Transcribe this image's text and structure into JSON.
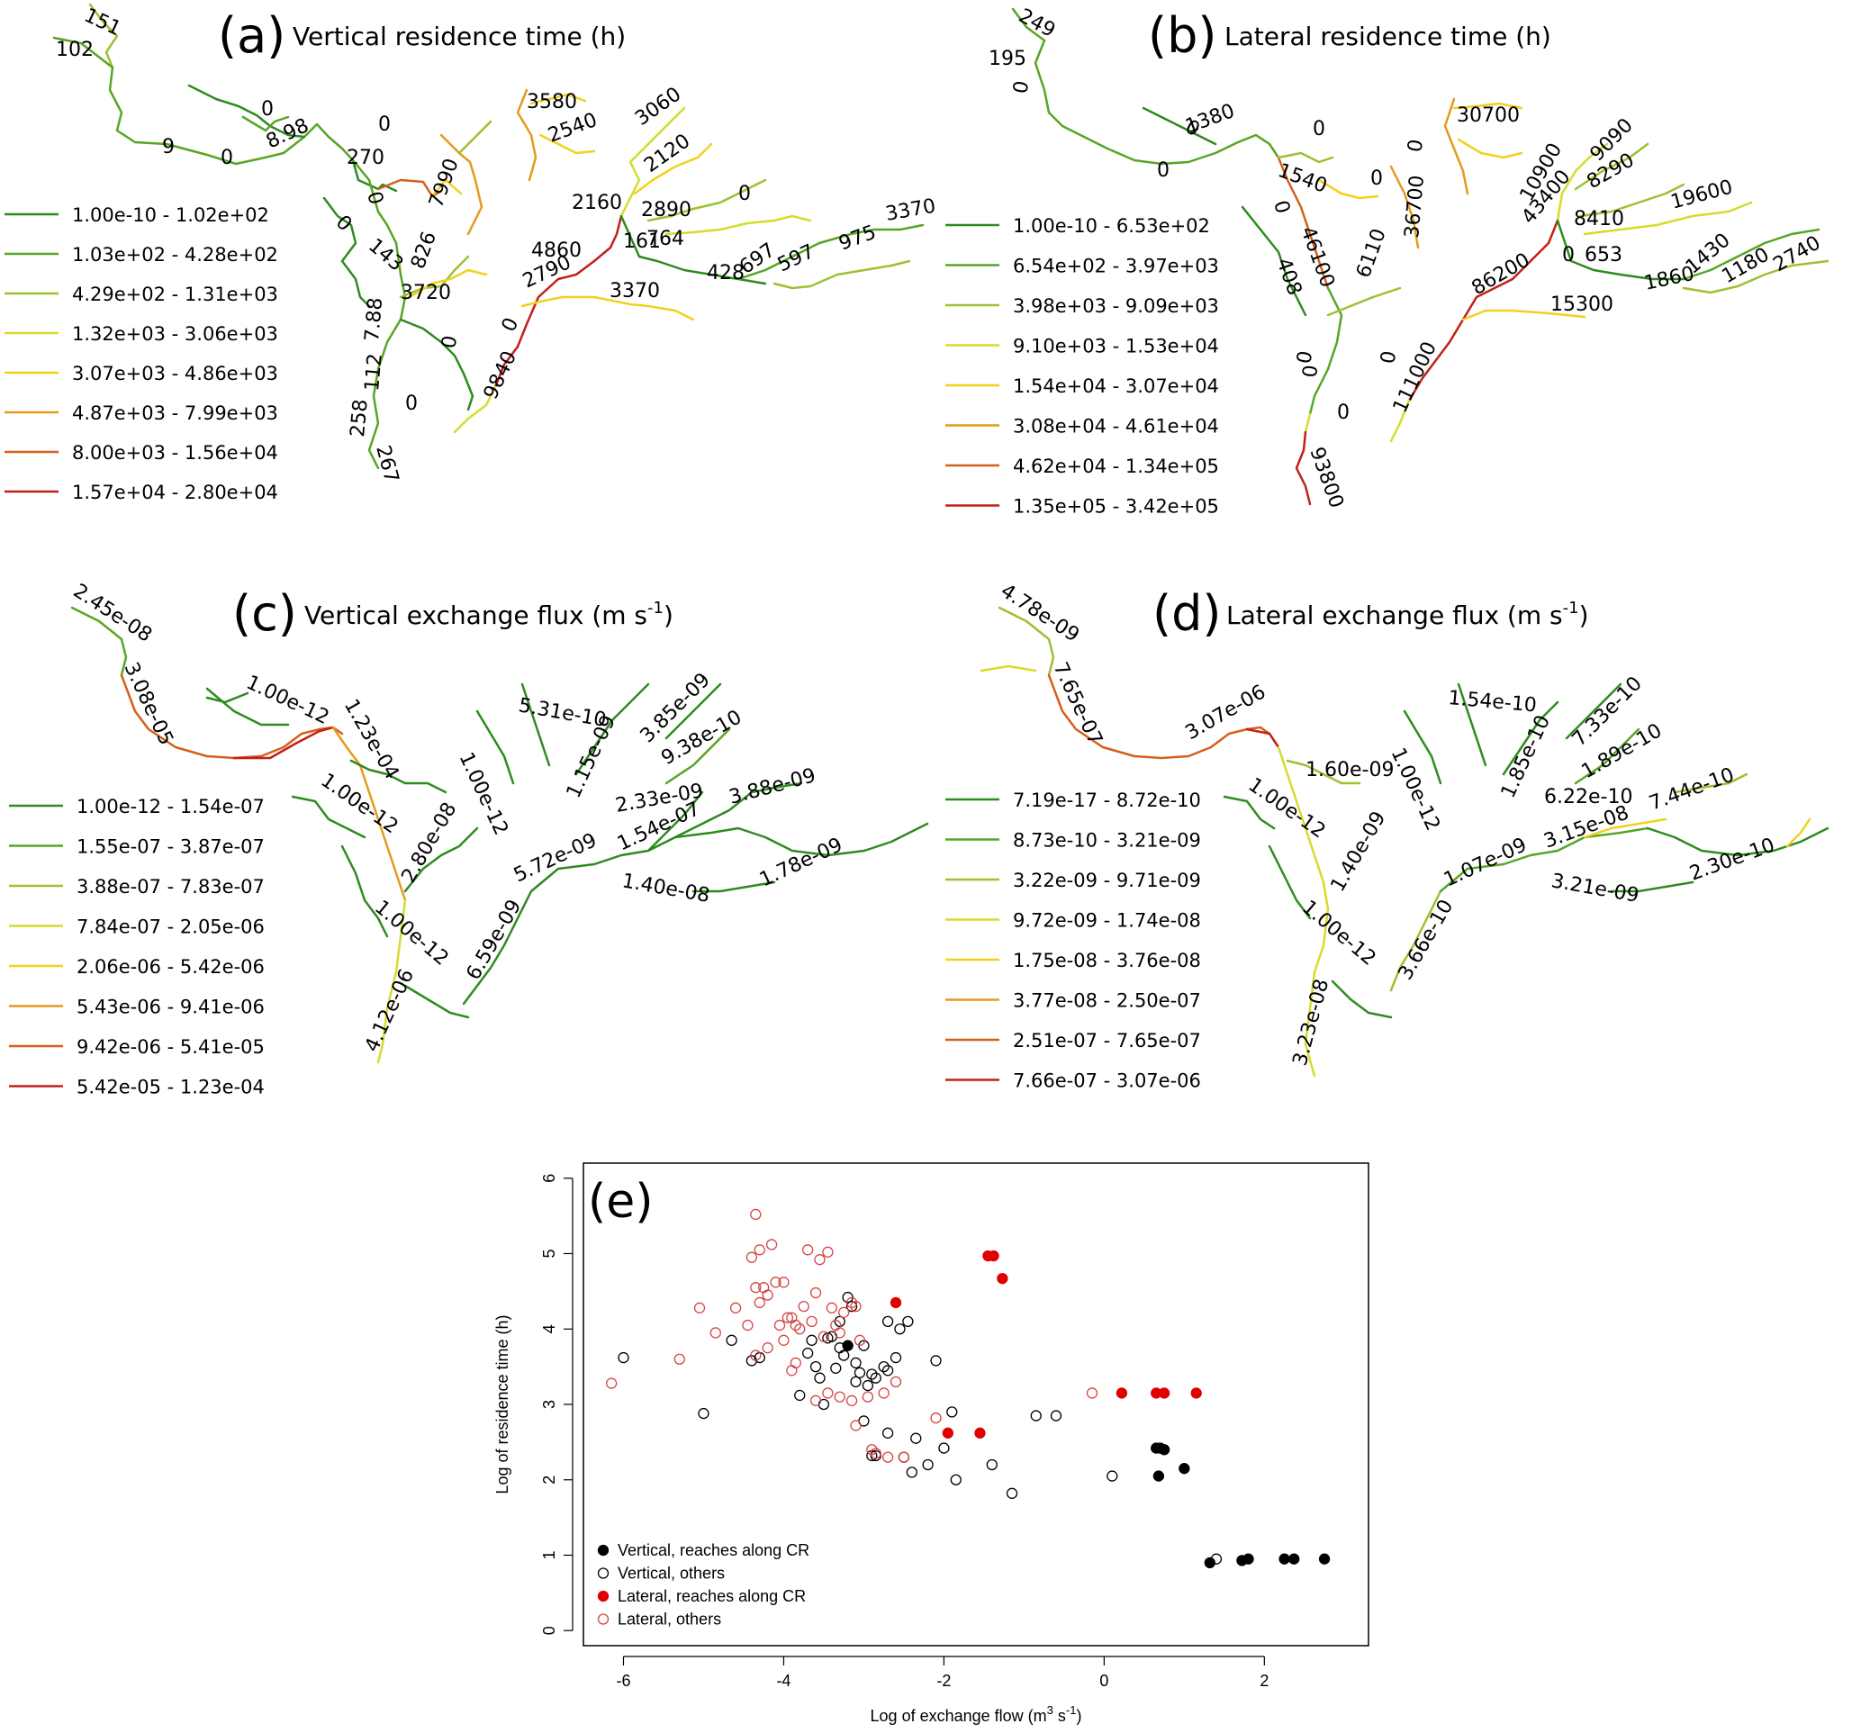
{
  "maps": [
    {
      "id": "a",
      "panel_label": "(a)",
      "title": "Vertical residence time (h)",
      "legend": [
        {
          "range": "1.00e-10 - 1.02e+02",
          "color": "#2e8b1f"
        },
        {
          "range": "1.03e+02 - 4.28e+02",
          "color": "#58a524"
        },
        {
          "range": "4.29e+02 - 1.31e+03",
          "color": "#9bc230"
        },
        {
          "range": "1.32e+03 - 3.06e+03",
          "color": "#d6dc2a"
        },
        {
          "range": "3.07e+03 - 4.86e+03",
          "color": "#f0d21e"
        },
        {
          "range": "4.87e+03 - 7.99e+03",
          "color": "#e69a1c"
        },
        {
          "range": "8.00e+03 - 1.56e+04",
          "color": "#d4601a"
        },
        {
          "range": "1.57e+04 - 2.80e+04",
          "color": "#c21f17"
        }
      ],
      "labels": [
        "151",
        "102",
        "9",
        "0",
        "8.98",
        "0",
        "270",
        "0",
        "7990",
        "0",
        "0",
        "143",
        "826",
        "3720",
        "7.88",
        "112",
        "258",
        "267",
        "0",
        "0",
        "9840",
        "0",
        "2790",
        "4860",
        "3580",
        "2540",
        "3060",
        "2120",
        "2160",
        "2890",
        "0",
        "161",
        "764",
        "428",
        "697",
        "597",
        "975",
        "3370"
      ]
    },
    {
      "id": "b",
      "panel_label": "(b)",
      "title": "Lateral residence time (h)",
      "legend": [
        {
          "range": "1.00e-10 - 6.53e+02",
          "color": "#2e8b1f"
        },
        {
          "range": "6.54e+02 - 3.97e+03",
          "color": "#58a524"
        },
        {
          "range": "3.98e+03 - 9.09e+03",
          "color": "#9bc230"
        },
        {
          "range": "9.10e+03 - 1.53e+04",
          "color": "#d6dc2a"
        },
        {
          "range": "1.54e+04 - 3.07e+04",
          "color": "#f0d21e"
        },
        {
          "range": "3.08e+04 - 4.61e+04",
          "color": "#e69a1c"
        },
        {
          "range": "4.62e+04 - 1.34e+05",
          "color": "#d4601a"
        },
        {
          "range": "1.35e+05 - 3.42e+05",
          "color": "#c21f17"
        }
      ],
      "labels": [
        "249",
        "195",
        "0",
        "0",
        "1380",
        "0",
        "1540",
        "0",
        "0",
        "0",
        "46100",
        "6110",
        "36700",
        "0",
        "408",
        "0",
        "0",
        "111000",
        "93800",
        "30700",
        "10900",
        "9090",
        "8290",
        "43400",
        "8410",
        "19600",
        "0",
        "653",
        "86200",
        "1430",
        "1860",
        "1180",
        "2740",
        "15300"
      ]
    },
    {
      "id": "c",
      "panel_label": "(c)",
      "title": "Vertical exchange flux (m s",
      "title_sup": "-1",
      "title_end": ")",
      "legend": [
        {
          "range": "1.00e-12 - 1.54e-07",
          "color": "#2e8b1f"
        },
        {
          "range": "1.55e-07 - 3.87e-07",
          "color": "#58a524"
        },
        {
          "range": "3.88e-07 - 7.83e-07",
          "color": "#9bc230"
        },
        {
          "range": "7.84e-07 - 2.05e-06",
          "color": "#d6dc2a"
        },
        {
          "range": "2.06e-06 - 5.42e-06",
          "color": "#f0d21e"
        },
        {
          "range": "5.43e-06 - 9.41e-06",
          "color": "#e69a1c"
        },
        {
          "range": "9.42e-06 - 5.41e-05",
          "color": "#d4601a"
        },
        {
          "range": "5.42e-05 - 1.23e-04",
          "color": "#c21f17"
        }
      ],
      "labels": [
        "2.45e-08",
        "3.08e-05",
        "1.00e-12",
        "1.23e-04",
        "1.00e-12",
        "2.80e-08",
        "1.00e-12",
        "4.12e-06",
        "1.00e-12",
        "5.31e-10",
        "1.15e-09",
        "3.85e-09",
        "9.38e-10",
        "2.33e-09",
        "3.88e-09",
        "1.54e-07",
        "5.72e-09",
        "1.40e-08",
        "1.78e-09",
        "6.59e-09"
      ]
    },
    {
      "id": "d",
      "panel_label": "(d)",
      "title": "Lateral exchange flux (m s",
      "title_sup": "-1",
      "title_end": ")",
      "legend": [
        {
          "range": "7.19e-17 - 8.72e-10",
          "color": "#2e8b1f"
        },
        {
          "range": "8.73e-10 - 3.21e-09",
          "color": "#58a524"
        },
        {
          "range": "3.22e-09 - 9.71e-09",
          "color": "#9bc230"
        },
        {
          "range": "9.72e-09 - 1.74e-08",
          "color": "#d6dc2a"
        },
        {
          "range": "1.75e-08 - 3.76e-08",
          "color": "#f0d21e"
        },
        {
          "range": "3.77e-08 - 2.50e-07",
          "color": "#e69a1c"
        },
        {
          "range": "2.51e-07 - 7.65e-07",
          "color": "#d4601a"
        },
        {
          "range": "7.66e-07 - 3.07e-06",
          "color": "#c21f17"
        }
      ],
      "labels": [
        "4.78e-09",
        "7.65e-07",
        "3.07e-06",
        "1.60e-09",
        "1.00e-12",
        "1.40e-09",
        "1.00e-12",
        "3.23e-08",
        "1.54e-10",
        "1.00e-12",
        "1.85e-10",
        "7.33e-10",
        "1.89e-10",
        "6.22e-10",
        "7.44e-10",
        "3.15e-08",
        "1.07e-09",
        "3.21e-09",
        "2.30e-10",
        "3.66e-10"
      ]
    }
  ],
  "chart_data": {
    "type": "scatter",
    "panel_label": "(e)",
    "xlabel": "Log of exchange flow (m",
    "xlabel_sup": "3",
    "xlabel_mid": " s",
    "xlabel_sup2": "-1",
    "xlabel_end": ")",
    "ylabel": "Log of residence time (h)",
    "xlim": [
      -6.5,
      3.3
    ],
    "ylim": [
      -0.2,
      6.2
    ],
    "x_ticks": [
      -6,
      -4,
      -2,
      0,
      2
    ],
    "y_ticks": [
      0,
      1,
      2,
      3,
      4,
      5,
      6
    ],
    "grid": false,
    "legend_position": "bottom-left",
    "series": [
      {
        "name": "Vertical, reaches along CR",
        "marker": "filled",
        "color": "#000000",
        "points": [
          [
            -3.2,
            3.78
          ],
          [
            0.65,
            2.42
          ],
          [
            0.7,
            2.42
          ],
          [
            0.75,
            2.4
          ],
          [
            1.0,
            2.15
          ],
          [
            0.68,
            2.05
          ],
          [
            1.32,
            0.9
          ],
          [
            1.72,
            0.93
          ],
          [
            1.8,
            0.95
          ],
          [
            2.25,
            0.95
          ],
          [
            2.37,
            0.95
          ],
          [
            2.75,
            0.95
          ]
        ]
      },
      {
        "name": "Vertical, others",
        "marker": "open",
        "color": "#000000",
        "points": [
          [
            -6.0,
            3.62
          ],
          [
            -5.0,
            2.88
          ],
          [
            -4.65,
            3.85
          ],
          [
            -4.4,
            3.58
          ],
          [
            -4.3,
            3.62
          ],
          [
            -3.8,
            3.12
          ],
          [
            -3.7,
            3.68
          ],
          [
            -3.6,
            3.5
          ],
          [
            -3.55,
            3.35
          ],
          [
            -3.45,
            3.88
          ],
          [
            -3.4,
            3.9
          ],
          [
            -3.3,
            3.75
          ],
          [
            -3.35,
            3.48
          ],
          [
            -3.2,
            4.42
          ],
          [
            -3.15,
            4.3
          ],
          [
            -3.1,
            3.55
          ],
          [
            -3.0,
            3.78
          ],
          [
            -3.05,
            3.42
          ],
          [
            -2.9,
            3.4
          ],
          [
            -2.85,
            3.35
          ],
          [
            -2.75,
            3.5
          ],
          [
            -2.7,
            3.45
          ],
          [
            -2.6,
            3.62
          ],
          [
            -2.55,
            4.0
          ],
          [
            -2.45,
            4.1
          ],
          [
            -2.7,
            4.1
          ],
          [
            -3.3,
            4.1
          ],
          [
            -3.5,
            3.0
          ],
          [
            -3.0,
            2.78
          ],
          [
            -2.9,
            2.32
          ],
          [
            -2.85,
            2.32
          ],
          [
            -2.7,
            2.62
          ],
          [
            -2.5,
            2.3
          ],
          [
            -2.4,
            2.1
          ],
          [
            -2.35,
            2.55
          ],
          [
            -2.2,
            2.2
          ],
          [
            -2.1,
            3.58
          ],
          [
            -2.0,
            2.42
          ],
          [
            -1.9,
            2.9
          ],
          [
            -1.85,
            2.0
          ],
          [
            -1.4,
            2.2
          ],
          [
            -1.15,
            1.82
          ],
          [
            -0.85,
            2.85
          ],
          [
            -0.6,
            2.85
          ],
          [
            0.1,
            2.05
          ],
          [
            1.4,
            0.95
          ],
          [
            -3.25,
            3.65
          ],
          [
            -3.1,
            3.3
          ],
          [
            -3.65,
            3.85
          ],
          [
            -2.95,
            3.25
          ]
        ]
      },
      {
        "name": "Lateral, reaches along CR",
        "marker": "filled",
        "color": "#e00000",
        "points": [
          [
            -2.6,
            4.35
          ],
          [
            -1.45,
            4.97
          ],
          [
            -1.38,
            4.97
          ],
          [
            -1.27,
            4.67
          ],
          [
            0.22,
            3.15
          ],
          [
            0.65,
            3.15
          ],
          [
            0.75,
            3.15
          ],
          [
            1.15,
            3.15
          ],
          [
            -1.95,
            2.62
          ],
          [
            -1.55,
            2.62
          ]
        ]
      },
      {
        "name": "Lateral, others",
        "marker": "open",
        "color": "#d64545",
        "points": [
          [
            -6.15,
            3.28
          ],
          [
            -5.3,
            3.6
          ],
          [
            -5.05,
            4.28
          ],
          [
            -4.85,
            3.95
          ],
          [
            -4.6,
            4.28
          ],
          [
            -4.45,
            4.05
          ],
          [
            -4.4,
            4.95
          ],
          [
            -4.35,
            5.52
          ],
          [
            -4.3,
            5.05
          ],
          [
            -4.35,
            4.55
          ],
          [
            -4.3,
            4.35
          ],
          [
            -4.25,
            4.55
          ],
          [
            -4.2,
            4.45
          ],
          [
            -4.15,
            5.12
          ],
          [
            -4.1,
            4.62
          ],
          [
            -4.0,
            4.62
          ],
          [
            -4.05,
            4.05
          ],
          [
            -3.95,
            4.15
          ],
          [
            -3.9,
            4.15
          ],
          [
            -3.85,
            4.05
          ],
          [
            -3.8,
            4.0
          ],
          [
            -3.75,
            4.3
          ],
          [
            -3.7,
            5.05
          ],
          [
            -3.65,
            4.1
          ],
          [
            -3.6,
            4.48
          ],
          [
            -3.55,
            4.92
          ],
          [
            -3.45,
            5.02
          ],
          [
            -3.4,
            4.28
          ],
          [
            -3.35,
            4.05
          ],
          [
            -3.3,
            3.95
          ],
          [
            -3.25,
            4.22
          ],
          [
            -3.15,
            4.35
          ],
          [
            -3.1,
            4.3
          ],
          [
            -3.05,
            3.85
          ],
          [
            -3.9,
            3.45
          ],
          [
            -3.85,
            3.55
          ],
          [
            -4.35,
            3.65
          ],
          [
            -4.2,
            3.75
          ],
          [
            -3.6,
            3.05
          ],
          [
            -3.3,
            3.1
          ],
          [
            -3.15,
            3.05
          ],
          [
            -3.45,
            3.15
          ],
          [
            -2.95,
            3.1
          ],
          [
            -2.6,
            3.3
          ],
          [
            -2.75,
            3.15
          ],
          [
            -3.1,
            2.72
          ],
          [
            -2.9,
            2.4
          ],
          [
            -2.85,
            2.35
          ],
          [
            -2.7,
            2.3
          ],
          [
            -2.5,
            2.3
          ],
          [
            -2.1,
            2.82
          ],
          [
            -0.15,
            3.15
          ],
          [
            -3.5,
            3.9
          ],
          [
            -4.0,
            3.85
          ]
        ]
      }
    ]
  }
}
